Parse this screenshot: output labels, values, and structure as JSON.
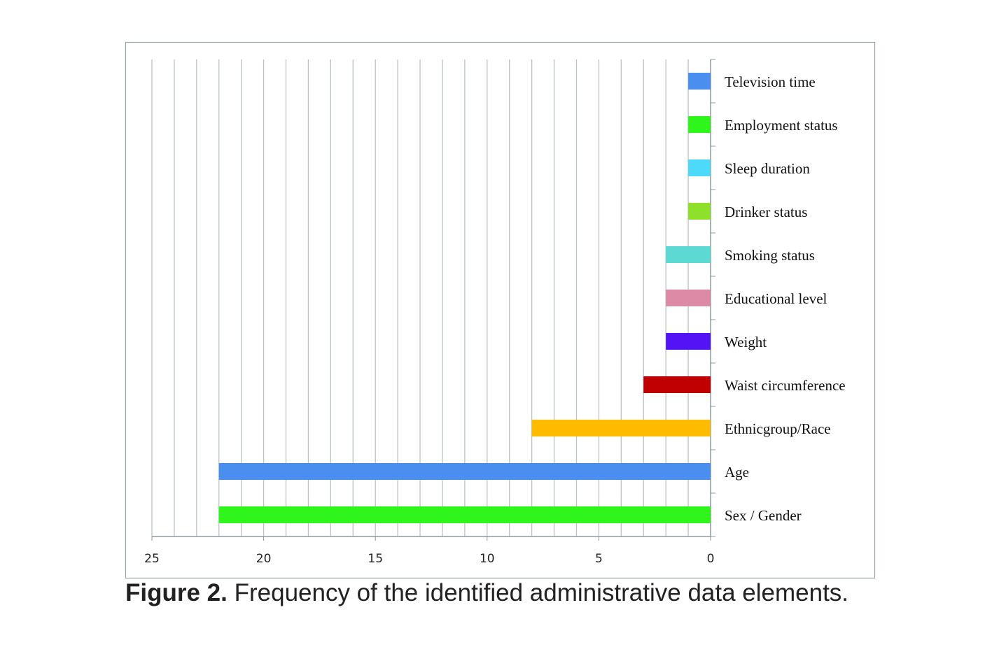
{
  "caption": {
    "label": "Figure 2.",
    "text": " Frequency of the identified administrative data elements."
  },
  "chart_data": {
    "type": "bar",
    "orientation": "horizontal",
    "x_reversed": true,
    "title": "",
    "xlabel": "",
    "ylabel": "",
    "xlim": [
      0,
      25
    ],
    "xticks": [
      25,
      20,
      15,
      10,
      5,
      0
    ],
    "grid": "vertical lines at every unit",
    "legend": "none",
    "categories": [
      "Television time",
      "Employment status",
      "Sleep duration",
      "Drinker status",
      "Smoking status",
      "Educational level",
      "Weight",
      "Waist circumference",
      "Ethnicgroup/Race",
      "Age",
      "Sex / Gender"
    ],
    "values": [
      1,
      1,
      1,
      1,
      2,
      2,
      2,
      3,
      8,
      22,
      22
    ],
    "colors": [
      "#4a8ff0",
      "#2ef51a",
      "#4ddafa",
      "#8ee02a",
      "#5cd9d2",
      "#dd8aa6",
      "#5214f5",
      "#c00000",
      "#ffbb00",
      "#4a8ff0",
      "#2ef51a"
    ]
  }
}
